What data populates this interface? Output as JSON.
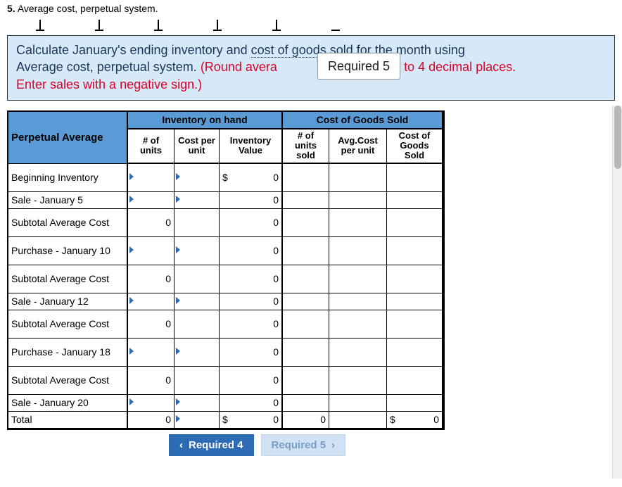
{
  "title_number": "5.",
  "title_text": "Average cost, perpetual system.",
  "instruction_line1_a": "Calculate January's ending inventory and ",
  "instruction_line1_b": "cost of goods sold",
  "instruction_line1_c": " for the month using",
  "instruction_line2_a": "Average cost, perpetual system. ",
  "instruction_line2_b": "(Round avera",
  "instruction_line2_c": "t to 4 decimal places.",
  "instruction_line3": "Enter sales with a negative sign.)",
  "req_floating": "Required 5",
  "table": {
    "corner": "Perpetual Average",
    "group_inv": "Inventory on hand",
    "group_cogs": "Cost of Goods Sold",
    "sub": {
      "units": "# of units",
      "cpu": "Cost per unit",
      "invval": "Inventory Value",
      "usold": "# of units sold",
      "avgcost": "Avg.Cost per unit",
      "cogs": "Cost of Goods Sold"
    },
    "rows": [
      {
        "label": "Beginning Inventory",
        "units": "",
        "cpu": "",
        "invval": "0",
        "invcur": "$",
        "usold": "",
        "avgcost": "",
        "cogs": "",
        "tri_units": true,
        "tri_cpu": true,
        "tall": true
      },
      {
        "label": "Sale - January 5",
        "units": "",
        "cpu": "",
        "invval": "0",
        "invcur": "",
        "usold": "",
        "avgcost": "",
        "cogs": "",
        "tri_units": true,
        "tri_cpu": true
      },
      {
        "label": "Subtotal Average Cost",
        "units": "0",
        "cpu": "",
        "invval": "0",
        "invcur": "",
        "usold": "",
        "avgcost": "",
        "cogs": "",
        "tall": true
      },
      {
        "label": "Purchase - January 10",
        "units": "",
        "cpu": "",
        "invval": "0",
        "invcur": "",
        "usold": "",
        "avgcost": "",
        "cogs": "",
        "tri_units": true,
        "tri_cpu": true,
        "tall": true
      },
      {
        "label": "Subtotal Average Cost",
        "units": "0",
        "cpu": "",
        "invval": "0",
        "invcur": "",
        "usold": "",
        "avgcost": "",
        "cogs": "",
        "tall": true
      },
      {
        "label": "Sale - January 12",
        "units": "",
        "cpu": "",
        "invval": "0",
        "invcur": "",
        "usold": "",
        "avgcost": "",
        "cogs": "",
        "tri_units": true,
        "tri_cpu": true
      },
      {
        "label": "Subtotal Average Cost",
        "units": "0",
        "cpu": "",
        "invval": "0",
        "invcur": "",
        "usold": "",
        "avgcost": "",
        "cogs": "",
        "tall": true
      },
      {
        "label": "Purchase - January 18",
        "units": "",
        "cpu": "",
        "invval": "0",
        "invcur": "",
        "usold": "",
        "avgcost": "",
        "cogs": "",
        "tri_units": true,
        "tri_cpu": true,
        "tall": true
      },
      {
        "label": "Subtotal Average Cost",
        "units": "0",
        "cpu": "",
        "invval": "0",
        "invcur": "",
        "usold": "",
        "avgcost": "",
        "cogs": "",
        "tall": true
      },
      {
        "label": "Sale - January 20",
        "units": "",
        "cpu": "",
        "invval": "0",
        "invcur": "",
        "usold": "",
        "avgcost": "",
        "cogs": "",
        "tri_units": true,
        "tri_cpu": true
      },
      {
        "label": "Total",
        "units": "0",
        "cpu": "",
        "invval": "0",
        "invcur": "$",
        "usold": "0",
        "avgcost": "",
        "cogs": "0",
        "cogscur": "$",
        "tri_cpu": true
      }
    ]
  },
  "nav": {
    "prev": "Required 4",
    "next": "Required 5"
  },
  "colors": {
    "header_bg": "#5b9bd5",
    "instruction_bg": "#d6e9f8",
    "instruction_text": "#1d3557",
    "red": "#d90429",
    "btn_active_bg": "#2d6cb5",
    "btn_inactive_bg": "#cfe2f3",
    "btn_inactive_text": "#7a9cc6"
  }
}
